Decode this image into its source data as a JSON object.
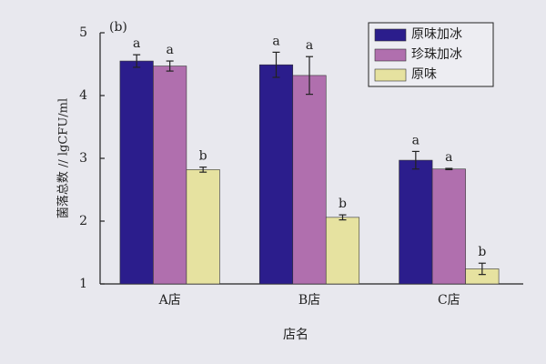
{
  "chart_data": {
    "type": "bar",
    "title": "(b)",
    "x_label": "店名",
    "y_label": "菌落总数 // lgCFU/ml",
    "categories": [
      "A店",
      "B店",
      "C店"
    ],
    "series": [
      {
        "name": "原味加冰",
        "color": "#2b1d8c",
        "values": [
          4.55,
          4.49,
          2.97
        ],
        "errors": [
          0.1,
          0.2,
          0.14
        ],
        "letters": [
          "a",
          "a",
          "a"
        ]
      },
      {
        "name": "珍珠加冰",
        "color": "#b06fae",
        "values": [
          4.47,
          4.32,
          2.83
        ],
        "errors": [
          0.08,
          0.3,
          0.01
        ],
        "letters": [
          "a",
          "a",
          "a"
        ]
      },
      {
        "name": "原味",
        "color": "#e6e2a0",
        "values": [
          2.82,
          2.06,
          1.24
        ],
        "errors": [
          0.04,
          0.04,
          0.09
        ],
        "letters": [
          "b",
          "b",
          "b"
        ]
      }
    ],
    "ylim": [
      1,
      5
    ],
    "yticks": [
      1,
      2,
      3,
      4,
      5
    ],
    "legend": "upper-right"
  }
}
